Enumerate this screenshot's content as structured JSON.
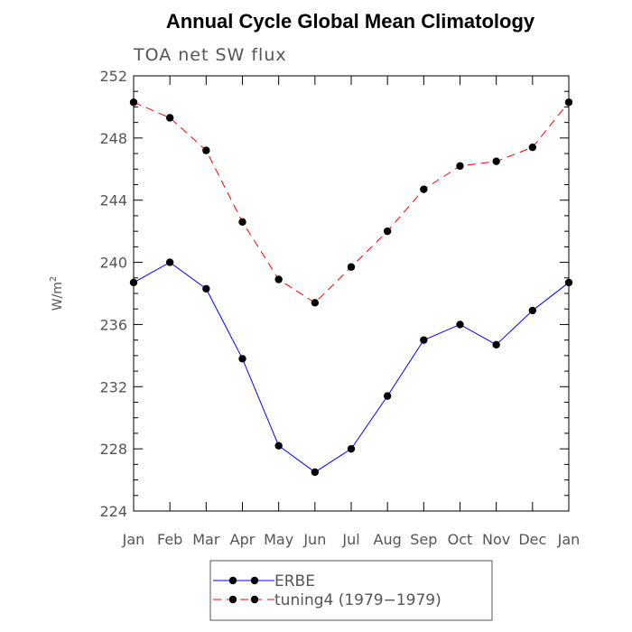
{
  "chart_data": {
    "type": "line",
    "title": "Annual Cycle Global Mean Climatology",
    "subtitle": "TOA net SW flux",
    "ylabel": "W/m",
    "ylabel_superscript": "2",
    "xlabel": "",
    "categories": [
      "Jan",
      "Feb",
      "Mar",
      "Apr",
      "May",
      "Jun",
      "Jul",
      "Aug",
      "Sep",
      "Oct",
      "Nov",
      "Dec",
      "Jan"
    ],
    "ylim": [
      224,
      252
    ],
    "yticks": [
      224,
      228,
      232,
      236,
      240,
      244,
      248,
      252
    ],
    "grid": false,
    "legend_placement": "bottom-center",
    "series": [
      {
        "name": "ERBE",
        "color": "#0000ff",
        "dash": "solid",
        "marker": "circle",
        "values": [
          238.7,
          240.0,
          238.3,
          233.8,
          228.2,
          226.5,
          228.0,
          231.4,
          235.0,
          236.0,
          234.7,
          236.9,
          238.7
        ]
      },
      {
        "name": "tuning4 (1979−1979)",
        "color": "#ff0000",
        "dash": "dashed",
        "marker": "circle",
        "values": [
          250.3,
          249.3,
          247.2,
          242.6,
          238.9,
          237.4,
          239.7,
          242.0,
          244.7,
          246.2,
          246.5,
          247.4,
          250.3
        ]
      }
    ]
  }
}
